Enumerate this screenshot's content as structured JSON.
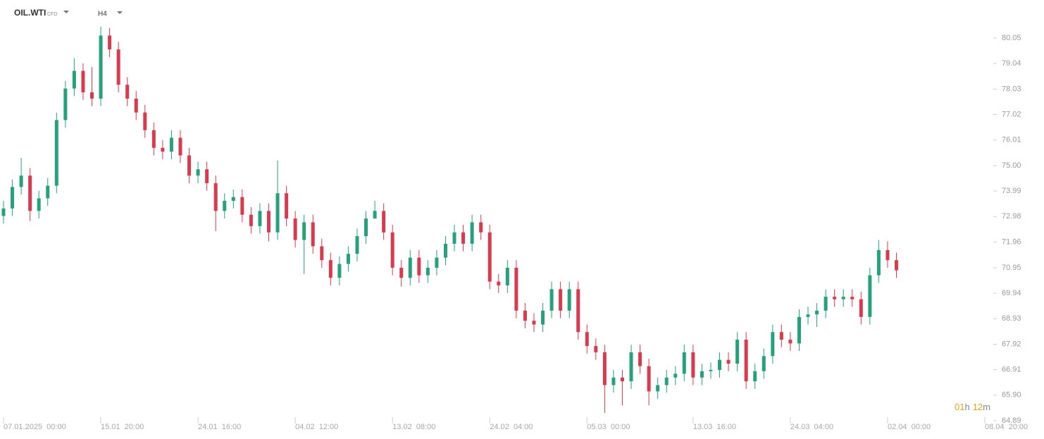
{
  "chart_data": {
    "type": "candlestick",
    "title": "OIL.WTI",
    "subtitle": "CFD",
    "timeframe": "H4",
    "countdown": {
      "hours": "01",
      "hours_unit": "h",
      "minutes": "12",
      "minutes_unit": "m"
    },
    "up_color": "#26a17b",
    "down_color": "#d83a4f",
    "ylim": [
      64.89,
      80.72
    ],
    "yticks": [
      80.05,
      79.04,
      78.03,
      77.02,
      76.01,
      {
        "value": 75,
        "label": "75.00"
      },
      73.99,
      72.98,
      71.96,
      70.95,
      69.94,
      68.93,
      67.92,
      66.91,
      {
        "value": 65.9,
        "label": "65.90"
      },
      64.89
    ],
    "categories": [
      "07.01.2025  00:00",
      null,
      null,
      null,
      null,
      null,
      null,
      null,
      null,
      null,
      null,
      "15.01  20:00",
      null,
      null,
      null,
      null,
      null,
      null,
      null,
      null,
      null,
      null,
      "24.01  16:00",
      null,
      null,
      null,
      null,
      null,
      null,
      null,
      null,
      null,
      null,
      "04.02  12:00",
      null,
      null,
      null,
      null,
      null,
      null,
      null,
      null,
      null,
      null,
      "13.02  08:00",
      null,
      null,
      null,
      null,
      null,
      null,
      null,
      null,
      null,
      null,
      "24.02  04:00",
      null,
      null,
      null,
      null,
      null,
      null,
      null,
      null,
      null,
      null,
      "05.03  00:00",
      null,
      null,
      null,
      null,
      null,
      null,
      null,
      null,
      null,
      null,
      null,
      "13.03  16:00",
      null,
      null,
      null,
      null,
      null,
      null,
      null,
      null,
      null,
      null,
      "24.03  04:00",
      null,
      null,
      null,
      null,
      null,
      null,
      null,
      null,
      null,
      null,
      "02.04  00:00",
      null,
      null,
      null,
      null,
      null,
      null,
      null,
      null,
      null,
      null,
      "08.04  20:00"
    ],
    "open": [
      73.0,
      73.3,
      74.15,
      74.6,
      73.2,
      73.7,
      74.2,
      76.8,
      78.05,
      78.75,
      77.9,
      77.65,
      80.15,
      79.6,
      78.2,
      77.65,
      77.1,
      76.4,
      75.7,
      75.55,
      76.1,
      75.4,
      74.6,
      74.85,
      74.3,
      73.2,
      73.6,
      73.75,
      73.05,
      72.6,
      73.2,
      72.35,
      73.9,
      72.9,
      72.05,
      72.75,
      71.8,
      71.25,
      70.55,
      71.1,
      71.5,
      72.2,
      72.9,
      73.2,
      72.35,
      70.95,
      70.55,
      71.35,
      70.65,
      70.95,
      71.35,
      71.9,
      72.35,
      71.9,
      72.75,
      72.35,
      70.4,
      70.25,
      70.95,
      69.25,
      68.85,
      68.7,
      69.25,
      70.1,
      69.25,
      70.1,
      68.4,
      67.85,
      67.6,
      66.3,
      66.6,
      66.45,
      67.6,
      67.05,
      66.05,
      66.3,
      66.6,
      66.75,
      67.6,
      66.6,
      66.85,
      66.9,
      67.3,
      67.15,
      68.1,
      66.45,
      66.85,
      67.45,
      68.4,
      68.1,
      67.95,
      69.0,
      69.1,
      69.25,
      69.8,
      69.7,
      69.8,
      69.7,
      69.0,
      70.65,
      71.65,
      71.25,
      null,
      null,
      null,
      null,
      null,
      null,
      null,
      null,
      null,
      null
    ],
    "high": [
      73.6,
      74.45,
      75.3,
      74.9,
      74.0,
      74.5,
      77.1,
      78.35,
      79.25,
      79.05,
      78.9,
      80.5,
      80.45,
      79.9,
      78.5,
      77.95,
      77.4,
      76.7,
      76.0,
      76.4,
      76.4,
      75.7,
      75.15,
      75.15,
      74.6,
      73.9,
      74.05,
      74.05,
      73.35,
      73.5,
      73.5,
      75.2,
      74.2,
      73.2,
      73.05,
      73.05,
      72.1,
      71.55,
      71.4,
      71.8,
      72.5,
      73.2,
      73.6,
      73.5,
      72.65,
      71.25,
      71.65,
      71.65,
      71.25,
      71.65,
      72.2,
      72.65,
      72.65,
      73.05,
      73.05,
      72.65,
      70.7,
      71.25,
      71.25,
      69.55,
      69.15,
      69.55,
      70.4,
      70.4,
      70.4,
      70.4,
      68.7,
      68.15,
      67.9,
      66.9,
      66.9,
      67.9,
      67.9,
      67.35,
      66.6,
      66.9,
      67.05,
      67.9,
      67.9,
      67.15,
      67.2,
      67.6,
      67.6,
      68.4,
      68.4,
      67.15,
      67.75,
      68.7,
      68.7,
      68.4,
      69.3,
      69.4,
      69.55,
      70.1,
      70.1,
      70.1,
      70.1,
      70.0,
      70.95,
      72.05,
      72.0,
      71.55,
      null,
      null,
      null,
      null,
      null,
      null,
      null,
      null,
      null,
      null
    ],
    "low": [
      72.7,
      73.0,
      73.85,
      72.8,
      72.9,
      73.4,
      73.9,
      76.5,
      77.75,
      77.6,
      77.35,
      77.35,
      79.3,
      77.9,
      77.35,
      76.8,
      76.1,
      75.4,
      75.25,
      75.25,
      75.1,
      74.3,
      74.3,
      74.0,
      72.4,
      72.9,
      73.3,
      72.75,
      72.3,
      72.3,
      72.0,
      72.05,
      72.6,
      71.75,
      70.7,
      71.5,
      70.95,
      70.25,
      70.25,
      70.8,
      71.2,
      71.9,
      72.9,
      72.05,
      70.65,
      70.2,
      70.25,
      70.35,
      70.35,
      70.65,
      71.05,
      71.6,
      71.6,
      71.6,
      72.05,
      70.1,
      69.95,
      69.95,
      68.95,
      68.55,
      68.4,
      68.4,
      68.95,
      68.95,
      68.95,
      68.1,
      67.55,
      67.3,
      65.2,
      66.0,
      65.5,
      66.15,
      66.75,
      65.5,
      65.75,
      66.0,
      66.3,
      66.45,
      66.3,
      66.3,
      66.55,
      66.6,
      66.85,
      66.85,
      66.15,
      66.15,
      66.55,
      67.15,
      67.8,
      67.65,
      67.65,
      68.7,
      68.6,
      68.95,
      69.4,
      69.4,
      69.4,
      68.7,
      68.7,
      70.35,
      70.95,
      70.55,
      null,
      null,
      null,
      null,
      null,
      null,
      null,
      null,
      null,
      null
    ],
    "close": [
      73.3,
      74.15,
      74.6,
      73.2,
      73.7,
      74.2,
      76.8,
      78.05,
      78.75,
      77.9,
      77.65,
      80.15,
      79.6,
      78.2,
      77.65,
      77.1,
      76.4,
      75.7,
      75.55,
      76.1,
      75.4,
      74.6,
      74.85,
      74.3,
      73.2,
      73.6,
      73.75,
      73.05,
      72.6,
      73.2,
      72.35,
      73.9,
      72.9,
      72.05,
      72.75,
      71.8,
      71.25,
      70.55,
      71.1,
      71.5,
      72.2,
      72.9,
      73.2,
      72.35,
      70.95,
      70.55,
      71.35,
      70.65,
      70.95,
      71.35,
      71.9,
      72.35,
      71.9,
      72.75,
      72.35,
      70.4,
      70.25,
      70.95,
      69.25,
      68.85,
      68.7,
      69.25,
      70.1,
      69.25,
      70.1,
      68.4,
      67.85,
      67.6,
      66.3,
      66.6,
      66.45,
      67.6,
      67.05,
      66.05,
      66.3,
      66.6,
      66.75,
      67.6,
      66.6,
      66.85,
      66.9,
      67.3,
      67.15,
      68.1,
      66.45,
      66.85,
      67.45,
      68.4,
      68.1,
      67.95,
      69.0,
      69.1,
      69.25,
      69.8,
      69.7,
      69.8,
      69.7,
      69.0,
      70.65,
      71.65,
      71.25,
      70.85,
      null,
      null,
      null,
      null,
      null,
      null,
      null,
      null,
      null,
      null
    ]
  }
}
